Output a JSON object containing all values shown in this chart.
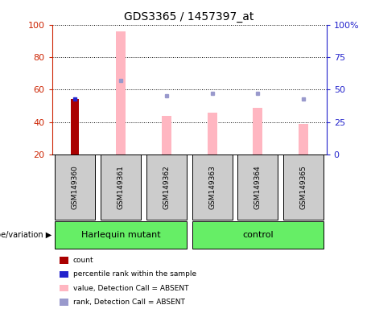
{
  "title": "GDS3365 / 1457397_at",
  "samples": [
    "GSM149360",
    "GSM149361",
    "GSM149362",
    "GSM149363",
    "GSM149364",
    "GSM149365"
  ],
  "n_samples": 6,
  "ylim_left": [
    20,
    100
  ],
  "ylim_right": [
    0,
    100
  ],
  "yticks_left": [
    20,
    40,
    60,
    80,
    100
  ],
  "ytick_labels_left": [
    "20",
    "40",
    "60",
    "80",
    "100"
  ],
  "yticks_right_vals": [
    0,
    25,
    50,
    75,
    100
  ],
  "ytick_labels_right": [
    "0",
    "25",
    "50",
    "75",
    "100%"
  ],
  "red_bar_val": 54.0,
  "red_bar_idx": 0,
  "blue_dot_rank": 50.0,
  "blue_dot_idx": 0,
  "pink_bar_vals": [
    54.0,
    96.0,
    44.0,
    46.0,
    49.0,
    39.0
  ],
  "pink_bar_for_sample0": true,
  "lavender_dot_vals": [
    null,
    57.0,
    45.0,
    47.0,
    47.0,
    43.0
  ],
  "red_bar_color": "#AA0000",
  "blue_dot_color": "#2222CC",
  "pink_bar_color": "#FFB6C1",
  "lavender_color": "#9999CC",
  "left_axis_color": "#CC2200",
  "right_axis_color": "#2222CC",
  "gray_box_color": "#CCCCCC",
  "group_color": "#66EE66",
  "group_names": [
    "Harlequin mutant",
    "control"
  ],
  "group_sample_ranges": [
    [
      0,
      2
    ],
    [
      3,
      5
    ]
  ],
  "legend_labels": [
    "count",
    "percentile rank within the sample",
    "value, Detection Call = ABSENT",
    "rank, Detection Call = ABSENT"
  ],
  "legend_colors": [
    "#AA0000",
    "#2222CC",
    "#FFB6C1",
    "#9999CC"
  ]
}
